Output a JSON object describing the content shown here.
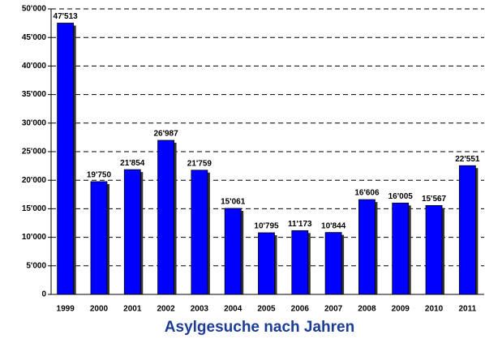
{
  "chart_data": {
    "type": "bar",
    "title": "Asylgesuche nach Jahren",
    "categories": [
      "1999",
      "2000",
      "2001",
      "2002",
      "2003",
      "2004",
      "2005",
      "2006",
      "2007",
      "2008",
      "2009",
      "2010",
      "2011"
    ],
    "values": [
      47513,
      19750,
      21854,
      26987,
      21759,
      15061,
      10795,
      11173,
      10844,
      16606,
      16005,
      15567,
      22551
    ],
    "value_labels": [
      "47'513",
      "19'750",
      "21'854",
      "26'987",
      "21'759",
      "15'061",
      "10'795",
      "11'173",
      "10'844",
      "16'606",
      "16'005",
      "15'567",
      "22'551"
    ],
    "color": "#0000ff",
    "ylim": [
      0,
      50000
    ],
    "yticks": [
      0,
      {
        "value": 5000,
        "label": "5'000"
      },
      {
        "value": 10000,
        "label": "10'000"
      },
      {
        "value": 15000,
        "label": "15'000"
      },
      {
        "value": 20000,
        "label": "20'000"
      },
      {
        "value": 25000,
        "label": "25'000"
      },
      {
        "value": 30000,
        "label": "30'000"
      },
      {
        "value": 35000,
        "label": "35'000"
      },
      {
        "value": 40000,
        "label": "40'000"
      },
      {
        "value": 45000,
        "label": "45'000"
      },
      {
        "value": 50000,
        "label": "50'000"
      }
    ],
    "grid": true
  }
}
